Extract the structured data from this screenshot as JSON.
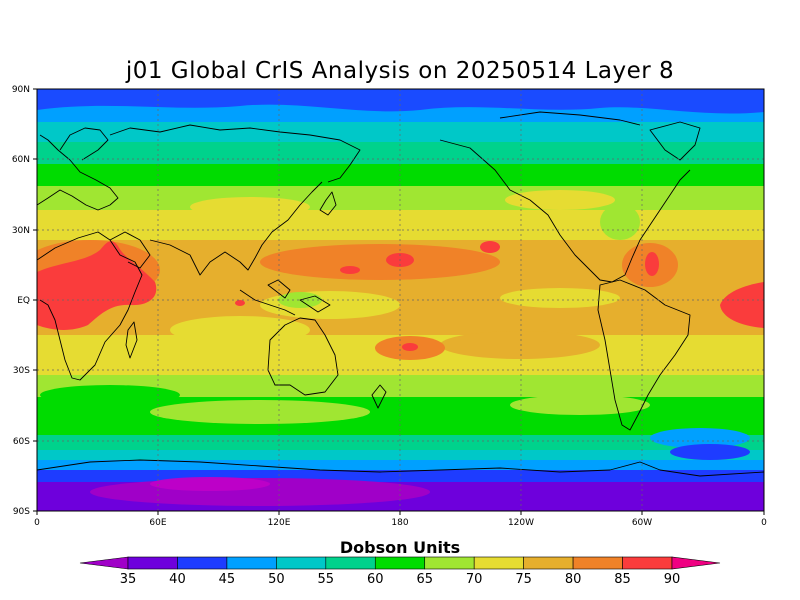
{
  "title": "j01 Global CrIS Analysis on 20250514 Layer 8",
  "colorbar": {
    "label": "Dobson Units",
    "levels": [
      35,
      40,
      45,
      50,
      55,
      60,
      65,
      70,
      75,
      80,
      85,
      90
    ],
    "colors": [
      "#a000c8",
      "#6e00dc",
      "#1e3cff",
      "#00a0ff",
      "#00c8c8",
      "#00d28c",
      "#00dc00",
      "#a0e632",
      "#e6dc32",
      "#e6af2d",
      "#f08228",
      "#fa3c3c",
      "#f00082"
    ]
  },
  "axes": {
    "lat_ticks": [
      "90N",
      "60N",
      "30N",
      "EQ",
      "30S",
      "60S",
      "90S"
    ],
    "lon_ticks": [
      "0",
      "60E",
      "120E",
      "180",
      "120W",
      "60W",
      "0"
    ]
  },
  "chart_data": {
    "type": "heatmap",
    "title": "j01 Global CrIS Analysis on 20250514 Layer 8",
    "units": "Dobson Units",
    "xlabel": "",
    "ylabel": "",
    "x_ticks": [
      "0",
      "60E",
      "120E",
      "180",
      "120W",
      "60W",
      "0"
    ],
    "y_ticks": [
      "90N",
      "60N",
      "30N",
      "EQ",
      "30S",
      "60S",
      "90S"
    ],
    "grid": true,
    "legend": "bottom-colorbar",
    "zones": [
      {
        "lat": 82,
        "value": 52
      },
      {
        "lat": 70,
        "value": 57
      },
      {
        "lat": 60,
        "value": 62
      },
      {
        "lat": 50,
        "value": 66
      },
      {
        "lat": 40,
        "value": 70
      },
      {
        "lat": 30,
        "value": 74
      },
      {
        "lat": 20,
        "value": 78
      },
      {
        "lat": 10,
        "value": 79
      },
      {
        "lat": 0,
        "value": 78
      },
      {
        "lat": -10,
        "value": 78
      },
      {
        "lat": -20,
        "value": 76
      },
      {
        "lat": -30,
        "value": 70
      },
      {
        "lat": -40,
        "value": 66
      },
      {
        "lat": -50,
        "value": 67
      },
      {
        "lat": -60,
        "value": 60
      },
      {
        "lat": -70,
        "value": 47
      },
      {
        "lat": -82,
        "value": 40
      }
    ],
    "anomalies": [
      {
        "lon": 20,
        "lat": 8,
        "value": 86
      },
      {
        "lon": 5,
        "lat": 0,
        "value": 88
      },
      {
        "lon": 180,
        "lat": 18,
        "value": 86
      },
      {
        "lon": 230,
        "lat": 22,
        "value": 85
      },
      {
        "lon": 300,
        "lat": 18,
        "value": 86
      },
      {
        "lon": 355,
        "lat": 2,
        "value": 88
      },
      {
        "lon": 100,
        "lat": -78,
        "value": 36
      }
    ]
  }
}
